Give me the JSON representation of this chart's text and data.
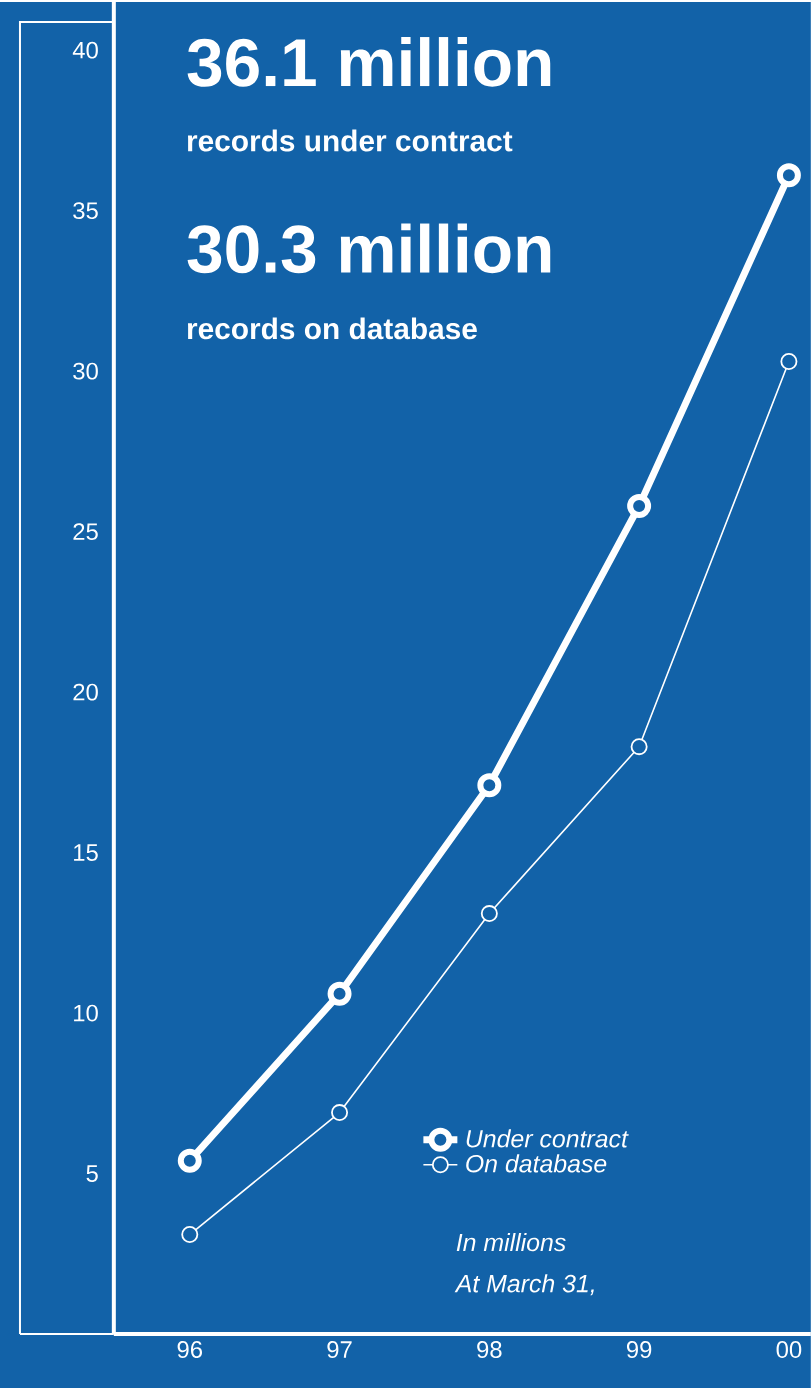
{
  "chart_data": {
    "type": "line",
    "categories": [
      "96",
      "97",
      "98",
      "99",
      "00"
    ],
    "series": [
      {
        "name": "Under contract",
        "color": "#ffffff",
        "values": [
          5.4,
          10.6,
          17.1,
          25.8,
          36.1
        ]
      },
      {
        "name": "On database",
        "color": "#ffffff",
        "values": [
          3.1,
          6.9,
          13.1,
          18.3,
          30.3
        ]
      }
    ],
    "ylim": [
      0,
      41.5
    ],
    "yticks": [
      5,
      10,
      15,
      20,
      25,
      30,
      35,
      40
    ],
    "marker": "circle",
    "line_style": "solid",
    "legend": "bottom right",
    "grid": false,
    "annotations": [
      "36.1 million",
      "records under contract",
      "30.3 million",
      "records on database",
      "In millions",
      "At March 31,"
    ]
  }
}
